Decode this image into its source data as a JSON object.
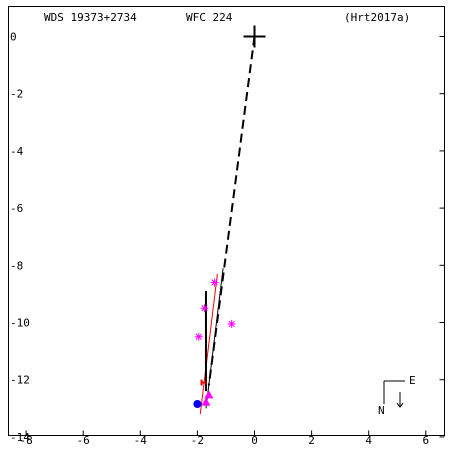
{
  "header": {
    "wds_id": "WDS 19373+2734",
    "discoverer": "WFC 224",
    "reference": "(Hrt2017a)"
  },
  "compass": {
    "east_label": "E",
    "north_label": "N"
  },
  "colors": {
    "frame": "#000000",
    "orbit": "#000000",
    "fit_line": "#ff0000",
    "speckle": "#ff00ff",
    "micrometric": "#ff0000",
    "latest": "#0000ff",
    "primary": "#000000"
  },
  "chart_data": {
    "type": "scatter",
    "title": "",
    "xlabel": "",
    "ylabel": "",
    "xlim": [
      -8,
      6.5
    ],
    "ylim": [
      -14,
      0.3
    ],
    "x_ticks": [
      -8,
      -6,
      -4,
      -2,
      0,
      2,
      4,
      6
    ],
    "y_ticks": [
      0,
      -2,
      -4,
      -6,
      -8,
      -10,
      -12,
      -14
    ],
    "x_tick_labels": [
      "-8",
      "-6",
      "-4",
      "-2",
      "0",
      "2",
      "4",
      "6"
    ],
    "y_tick_labels": [
      "0",
      "-2",
      "-4",
      "-6",
      "-8",
      "-10",
      "-12",
      "-14"
    ],
    "primary": {
      "x": 0,
      "y": 0
    },
    "dashed_line": {
      "from": [
        0,
        0
      ],
      "to": [
        -1.6,
        -12.2
      ]
    },
    "solid_segment": {
      "from": [
        -1.7,
        -8.9
      ],
      "to": [
        -1.7,
        -12.4
      ]
    },
    "fit_lines": [
      {
        "from": [
          -1.3,
          -8.3
        ],
        "to": [
          -1.9,
          -13.2
        ],
        "color": "#ff0000"
      },
      {
        "from": [
          -1.1,
          -8.1
        ],
        "to": [
          -1.7,
          -13.0
        ],
        "color": "#000000"
      }
    ],
    "speckle_points": [
      {
        "x": -1.4,
        "y": -8.6
      },
      {
        "x": -1.75,
        "y": -9.5
      },
      {
        "x": -0.8,
        "y": -10.05
      },
      {
        "x": -1.95,
        "y": -10.5
      }
    ],
    "triangle_points": [
      {
        "x": -1.6,
        "y": -12.55
      },
      {
        "x": -1.7,
        "y": -12.8
      }
    ],
    "micrometric_points": [
      {
        "x": -1.75,
        "y": -12.1
      }
    ],
    "latest_point": {
      "x": -2.0,
      "y": -12.85
    },
    "grid": false
  }
}
